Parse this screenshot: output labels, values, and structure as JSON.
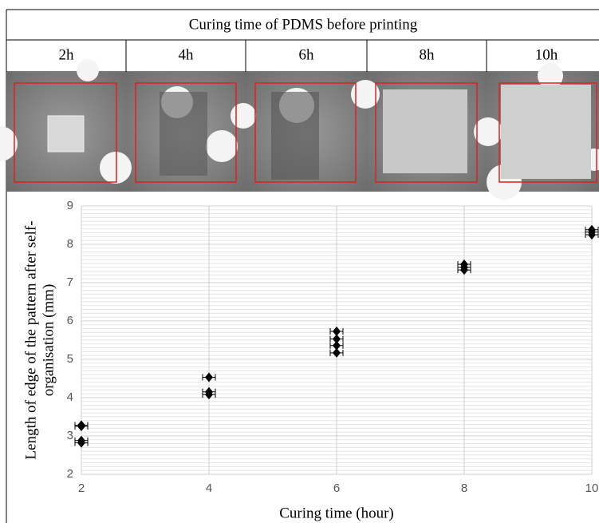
{
  "table": {
    "title": "Curing time of PDMS before printing",
    "columns": [
      "2h",
      "4h",
      "6h",
      "8h",
      "10h"
    ]
  },
  "chart_data": {
    "type": "scatter",
    "xlabel": "Curing time (hour)",
    "ylabel": [
      "Length of edge of the pattern after self-",
      "organisation (mm)"
    ],
    "xlim": [
      2,
      10
    ],
    "ylim": [
      2,
      9
    ],
    "xticks": [
      2,
      4,
      6,
      8,
      10
    ],
    "yticks": [
      2,
      3,
      4,
      5,
      6,
      7,
      8,
      9
    ],
    "grid": true,
    "minor_grid": true,
    "series": [
      {
        "color": "#000000",
        "x": [
          2,
          2,
          2,
          2,
          4,
          4,
          4,
          6,
          6,
          6,
          6,
          8,
          8,
          8,
          10,
          10,
          10
        ],
        "values": [
          3.28,
          3.25,
          2.88,
          2.82,
          4.53,
          4.15,
          4.08,
          5.73,
          5.53,
          5.36,
          5.17,
          7.48,
          7.4,
          7.33,
          8.38,
          8.32,
          8.25
        ],
        "xerr": [
          0.1,
          0.1,
          0.1,
          0.1,
          0.1,
          0.1,
          0.1,
          0.1,
          0.1,
          0.1,
          0.1,
          0.1,
          0.1,
          0.1,
          0.1,
          0.1,
          0.1
        ]
      }
    ]
  }
}
